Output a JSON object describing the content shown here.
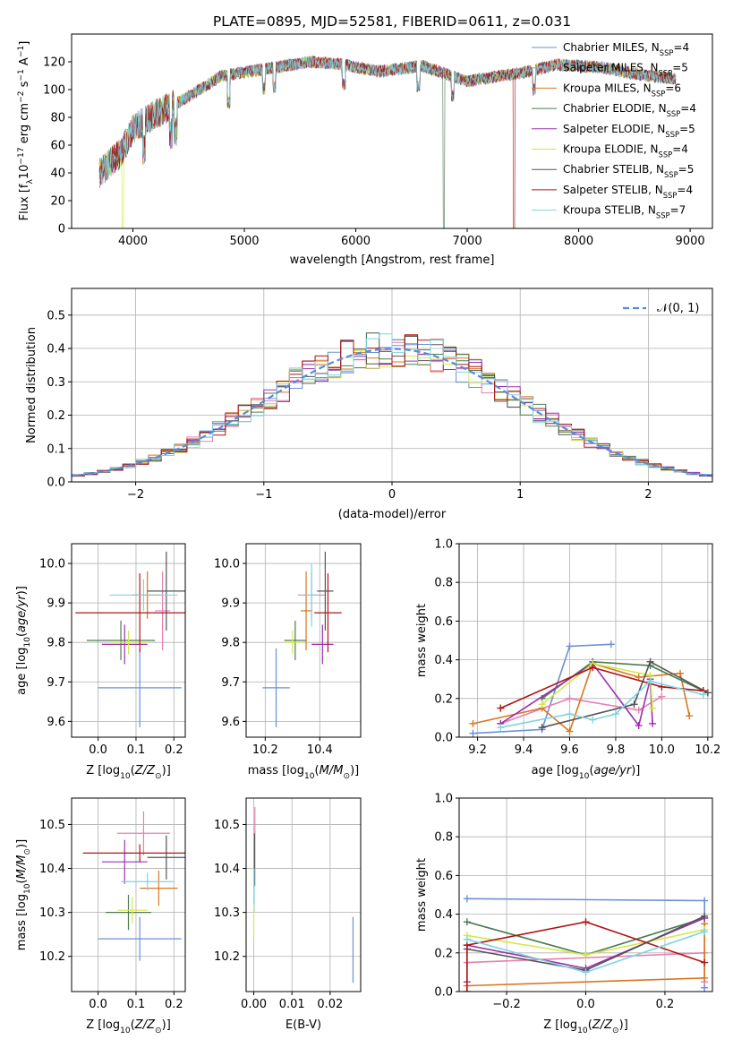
{
  "title": "PLATE=0895, MJD=52581, FIBERID=0611, z=0.031",
  "colors": [
    "#6b8fd6",
    "#e87fb5",
    "#d9771e",
    "#4c7b55",
    "#9b30b0",
    "#d4e84a",
    "#555555",
    "#b01515",
    "#7fd4e0"
  ],
  "legend": [
    {
      "lib": "Chabrier MILES",
      "n": "4"
    },
    {
      "lib": "Salpeter MILES",
      "n": "5"
    },
    {
      "lib": "Kroupa MILES",
      "n": "6"
    },
    {
      "lib": "Chabrier ELODIE",
      "n": "4"
    },
    {
      "lib": "Salpeter ELODIE",
      "n": "5"
    },
    {
      "lib": "Kroupa ELODIE",
      "n": "4"
    },
    {
      "lib": "Chabrier STELIB",
      "n": "5"
    },
    {
      "lib": "Salpeter STELIB",
      "n": "4"
    },
    {
      "lib": "Kroupa STELIB",
      "n": "7"
    }
  ],
  "chart_data": [
    {
      "type": "line",
      "panel": "spectrum",
      "xlabel": "wavelength [Angstrom, rest frame]",
      "ylabel": "Flux [f_λ 10^-17 erg cm^-2 s^-1 A^-1]",
      "xlim": [
        3450,
        9200
      ],
      "ylim": [
        0,
        140
      ],
      "xticks": [
        4000,
        5000,
        6000,
        7000,
        8000,
        9000
      ],
      "yticks": [
        0,
        20,
        40,
        60,
        80,
        100,
        120
      ],
      "envelope": [
        [
          3700,
          40
        ],
        [
          3900,
          55
        ],
        [
          4000,
          72
        ],
        [
          4200,
          82
        ],
        [
          4500,
          95
        ],
        [
          4800,
          110
        ],
        [
          5200,
          115
        ],
        [
          5600,
          120
        ],
        [
          5900,
          118
        ],
        [
          6200,
          113
        ],
        [
          6600,
          117
        ],
        [
          7000,
          106
        ],
        [
          7300,
          110
        ],
        [
          7500,
          112
        ],
        [
          7800,
          118
        ],
        [
          8200,
          116
        ],
        [
          8600,
          110
        ],
        [
          8870,
          108
        ]
      ],
      "dropouts": [
        3910,
        6790,
        7420
      ]
    },
    {
      "type": "line",
      "panel": "residuals",
      "xlabel": "(data-model)/error",
      "ylabel": "Normed distribution",
      "xlim": [
        -2.5,
        2.5
      ],
      "ylim": [
        0,
        0.58
      ],
      "xticks": [
        -2,
        -1,
        0,
        1,
        2
      ],
      "yticks": [
        0.0,
        0.1,
        0.2,
        0.3,
        0.4,
        0.5
      ],
      "legend": "N(0,1)",
      "gaussian": {
        "mu": 0,
        "sigma": 1
      }
    },
    {
      "type": "scatter",
      "panel": "age-vs-Z",
      "xlabel": "Z [log10(Z/Z⊙)]",
      "ylabel": "age [log10(age/yr)]",
      "xlim": [
        -0.07,
        0.23
      ],
      "ylim": [
        9.56,
        10.05
      ],
      "xticks": [
        0.0,
        0.1,
        0.2
      ],
      "yticks": [
        9.6,
        9.7,
        9.8,
        9.9,
        10.0
      ],
      "points": [
        {
          "x": 0.11,
          "xe": 0.11,
          "y": 9.685,
          "ye": 0.1
        },
        {
          "x": 0.17,
          "xe": 0.02,
          "y": 9.88,
          "ye": 0.1
        },
        {
          "x": 0.13,
          "xe": 0.04,
          "y": 9.92,
          "ye": 0.06
        },
        {
          "x": 0.06,
          "xe": 0.09,
          "y": 9.805,
          "ye": 0.05
        },
        {
          "x": 0.07,
          "xe": 0.06,
          "y": 9.795,
          "ye": 0.05
        },
        {
          "x": 0.08,
          "xe": 0.05,
          "y": 9.8,
          "ye": 0.03
        },
        {
          "x": 0.18,
          "xe": 0.05,
          "y": 9.93,
          "ye": 0.1
        },
        {
          "x": 0.11,
          "xe": 0.17,
          "y": 9.875,
          "ye": 0.1
        },
        {
          "x": 0.12,
          "xe": 0.09,
          "y": 9.92,
          "ye": 0.04
        }
      ]
    },
    {
      "type": "scatter",
      "panel": "age-vs-mass",
      "xlabel": "mass [log10(M/M⊙)]",
      "ylabel": "",
      "xlim": [
        10.13,
        10.55
      ],
      "ylim": [
        9.56,
        10.05
      ],
      "xticks": [
        10.2,
        10.4
      ],
      "yticks": [
        9.6,
        9.7,
        9.8,
        9.9,
        10.0
      ],
      "points": [
        {
          "x": 10.24,
          "xe": 0.05,
          "y": 9.685,
          "ye": 0.1
        },
        {
          "x": 10.37,
          "xe": 0.05,
          "y": 9.92,
          "ye": 0.06
        },
        {
          "x": 10.35,
          "xe": 0.02,
          "y": 9.88,
          "ye": 0.1
        },
        {
          "x": 10.31,
          "xe": 0.04,
          "y": 9.805,
          "ye": 0.05
        },
        {
          "x": 10.41,
          "xe": 0.04,
          "y": 9.795,
          "ye": 0.05
        },
        {
          "x": 10.3,
          "xe": 0.03,
          "y": 9.8,
          "ye": 0.03
        },
        {
          "x": 10.42,
          "xe": 0.03,
          "y": 9.93,
          "ye": 0.1
        },
        {
          "x": 10.43,
          "xe": 0.05,
          "y": 9.875,
          "ye": 0.1
        },
        {
          "x": 10.37,
          "xe": 0.02,
          "y": 9.92,
          "ye": 0.08
        }
      ]
    },
    {
      "type": "line",
      "panel": "mass-weight-vs-age",
      "xlabel": "age [log10(age/yr)]",
      "ylabel": "mass weight",
      "xlim": [
        9.12,
        10.22
      ],
      "ylim": [
        0,
        1
      ],
      "xticks": [
        9.2,
        9.4,
        9.6,
        9.8,
        10.0,
        10.2
      ],
      "yticks": [
        0.0,
        0.2,
        0.4,
        0.6,
        0.8,
        1.0
      ],
      "series": [
        {
          "x": [
            9.18,
            9.48,
            9.6,
            9.78
          ],
          "y": [
            0.02,
            0.04,
            0.47,
            0.48
          ]
        },
        {
          "x": [
            9.3,
            9.6,
            9.9,
            10.0
          ],
          "y": [
            0.07,
            0.2,
            0.14,
            0.21
          ]
        },
        {
          "x": [
            9.18,
            9.48,
            9.6,
            9.7,
            9.9,
            10.08,
            10.12
          ],
          "y": [
            0.07,
            0.15,
            0.03,
            0.38,
            0.31,
            0.33,
            0.11
          ]
        },
        {
          "x": [
            9.48,
            9.7,
            9.95,
            10.18
          ],
          "y": [
            0.2,
            0.39,
            0.37,
            0.24
          ]
        },
        {
          "x": [
            9.3,
            9.7,
            9.9,
            9.95,
            9.96
          ],
          "y": [
            0.07,
            0.38,
            0.06,
            0.3,
            0.07
          ]
        },
        {
          "x": [
            9.48,
            9.7,
            9.95,
            9.96
          ],
          "y": [
            0.17,
            0.38,
            0.32,
            0.15
          ]
        },
        {
          "x": [
            9.48,
            9.88,
            9.95,
            10.2
          ],
          "y": [
            0.05,
            0.17,
            0.39,
            0.23
          ]
        },
        {
          "x": [
            9.3,
            9.7,
            10.0,
            10.18
          ],
          "y": [
            0.15,
            0.36,
            0.26,
            0.24
          ]
        },
        {
          "x": [
            9.3,
            9.6,
            9.7,
            9.8,
            9.95,
            10.18
          ],
          "y": [
            0.05,
            0.12,
            0.09,
            0.12,
            0.29,
            0.22
          ]
        }
      ]
    },
    {
      "type": "scatter",
      "panel": "mass-vs-Z",
      "xlabel": "Z [log10(Z/Z⊙)]",
      "ylabel": "mass [log10(M/M⊙)]",
      "xlim": [
        -0.07,
        0.23
      ],
      "ylim": [
        10.12,
        10.56
      ],
      "xticks": [
        0.0,
        0.1,
        0.2
      ],
      "yticks": [
        10.2,
        10.3,
        10.4,
        10.5
      ],
      "points": [
        {
          "x": 0.11,
          "xe": 0.11,
          "y": 10.24,
          "ye": 0.05
        },
        {
          "x": 0.12,
          "xe": 0.07,
          "y": 10.48,
          "ye": 0.05
        },
        {
          "x": 0.16,
          "xe": 0.05,
          "y": 10.355,
          "ye": 0.04
        },
        {
          "x": 0.08,
          "xe": 0.06,
          "y": 10.3,
          "ye": 0.04
        },
        {
          "x": 0.07,
          "xe": 0.06,
          "y": 10.415,
          "ye": 0.05
        },
        {
          "x": 0.09,
          "xe": 0.04,
          "y": 10.305,
          "ye": 0.03
        },
        {
          "x": 0.18,
          "xe": 0.05,
          "y": 10.425,
          "ye": 0.05
        },
        {
          "x": 0.11,
          "xe": 0.15,
          "y": 10.435,
          "ye": 0.02
        },
        {
          "x": 0.13,
          "xe": 0.07,
          "y": 10.37,
          "ye": 0.02
        }
      ]
    },
    {
      "type": "scatter",
      "panel": "mass-vs-ebv",
      "xlabel": "E(B-V)",
      "ylabel": "",
      "xlim": [
        -0.002,
        0.028
      ],
      "ylim": [
        10.12,
        10.56
      ],
      "xticks": [
        0.0,
        0.01,
        0.02
      ],
      "xticklabels": [
        "0.00",
        "0.01",
        "0.02"
      ],
      "yticks": [
        10.2,
        10.3,
        10.4,
        10.5
      ],
      "points": [
        {
          "x": 0.026,
          "y": 10.215,
          "ye": 0.075
        },
        {
          "x": 0.0003,
          "y": 10.45,
          "ye": 0.09
        },
        {
          "x": 0.0002,
          "y": 10.42,
          "ye": 0.06
        },
        {
          "x": 0.0001,
          "y": 10.35,
          "ye": 0.05
        },
        {
          "x": 0.0,
          "y": 10.28,
          "ye": 0.04
        }
      ]
    },
    {
      "type": "line",
      "panel": "mass-weight-vs-Z",
      "xlabel": "Z [log10(Z/Z⊙)]",
      "ylabel": "mass weight",
      "xlim": [
        -0.32,
        0.32
      ],
      "ylim": [
        0,
        1
      ],
      "xticks": [
        -0.2,
        0.0,
        0.2
      ],
      "yticks": [
        0.0,
        0.2,
        0.4,
        0.6,
        0.8,
        1.0
      ],
      "series": [
        {
          "x": [
            -0.3,
            0.3,
            0.3
          ],
          "y": [
            0.48,
            0.47,
            0.02
          ]
        },
        {
          "x": [
            -0.3,
            0.3,
            0.3
          ],
          "y": [
            0.15,
            0.2,
            0.05
          ]
        },
        {
          "x": [
            -0.3,
            0.3,
            0.3
          ],
          "y": [
            0.03,
            0.07,
            0.35
          ]
        },
        {
          "x": [
            -0.3,
            0.0,
            0.3
          ],
          "y": [
            0.36,
            0.19,
            0.38
          ]
        },
        {
          "x": [
            -0.3,
            -0.3,
            0.0,
            0.3
          ],
          "y": [
            0.05,
            0.24,
            0.12,
            0.38
          ]
        },
        {
          "x": [
            -0.3,
            0.0,
            0.3
          ],
          "y": [
            0.29,
            0.19,
            0.32
          ]
        },
        {
          "x": [
            -0.3,
            0.0,
            0.3
          ],
          "y": [
            0.22,
            0.11,
            0.39
          ]
        },
        {
          "x": [
            -0.3,
            -0.3,
            0.0,
            0.3
          ],
          "y": [
            0.0,
            0.24,
            0.36,
            0.15
          ]
        },
        {
          "x": [
            -0.3,
            0.0,
            0.3
          ],
          "y": [
            0.27,
            0.1,
            0.31
          ]
        }
      ]
    }
  ]
}
